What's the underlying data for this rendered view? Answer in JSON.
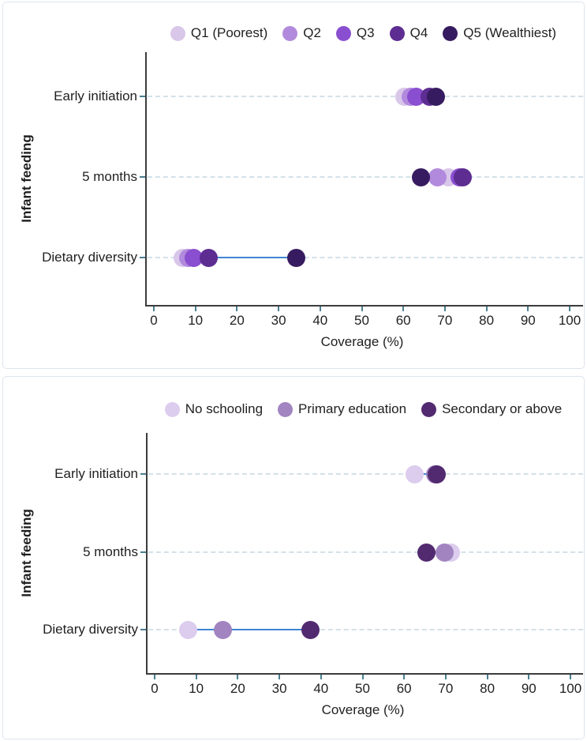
{
  "colors": {
    "axis": "#3c3c3c",
    "tick": "#4b7f91",
    "gridline": "#d3e1e9",
    "connector": "#3f86d2",
    "panel_border": "#dde5ee",
    "text": "#1f1f1f"
  },
  "chart_data": [
    {
      "id": "wealth-quintiles",
      "type": "scatter",
      "title": "",
      "xlabel": "Coverage (%)",
      "ylabel": "Infant feeding",
      "categories": [
        "Early initiation",
        "5 months",
        "Dietary diversity"
      ],
      "x_ticks": [
        0,
        10,
        20,
        30,
        40,
        50,
        60,
        70,
        80,
        90,
        100
      ],
      "xlim": [
        0,
        100
      ],
      "grid": "dashed-horizontal",
      "legend_position": "top",
      "connector_color": "#3f86d2",
      "series": [
        {
          "name": "Q1 (Poorest)",
          "color": "#d9c7ea",
          "values": [
            60.2,
            70.8,
            7.0
          ]
        },
        {
          "name": "Q2",
          "color": "#b28add",
          "values": [
            61.8,
            68.3,
            8.3
          ]
        },
        {
          "name": "Q3",
          "color": "#8a4ed0",
          "values": [
            63.1,
            73.6,
            9.6
          ]
        },
        {
          "name": "Q4",
          "color": "#5d2d92",
          "values": [
            66.3,
            74.2,
            13.2
          ]
        },
        {
          "name": "Q5 (Wealthiest)",
          "color": "#371b60",
          "values": [
            67.9,
            64.2,
            34.2
          ]
        }
      ]
    },
    {
      "id": "maternal-education",
      "type": "scatter",
      "title": "",
      "xlabel": "Coverage (%)",
      "ylabel": "Infant feeding",
      "categories": [
        "Early initiation",
        "5 months",
        "Dietary diversity"
      ],
      "x_ticks": [
        0,
        10,
        20,
        30,
        40,
        50,
        60,
        70,
        80,
        90,
        100
      ],
      "xlim": [
        0,
        100
      ],
      "grid": "dashed-horizontal",
      "legend_position": "top",
      "connector_color": "#3f86d2",
      "series": [
        {
          "name": "No schooling",
          "color": "#dcccee",
          "values": [
            62.6,
            71.3,
            8.0
          ]
        },
        {
          "name": "Primary education",
          "color": "#a184c0",
          "values": [
            67.4,
            69.8,
            16.4
          ]
        },
        {
          "name": "Secondary or above",
          "color": "#522a70",
          "values": [
            67.9,
            65.3,
            37.4
          ]
        }
      ]
    }
  ]
}
